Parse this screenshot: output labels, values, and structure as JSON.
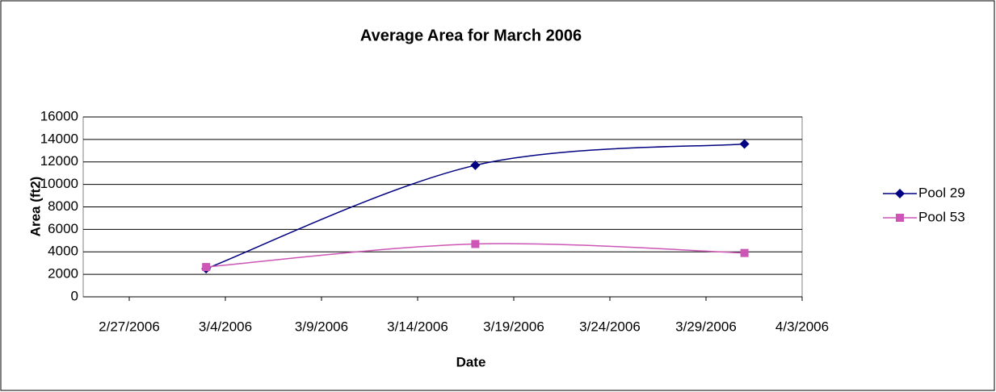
{
  "chart_data": {
    "type": "line",
    "title": "Average Area for March 2006",
    "x_label": "Date",
    "y_label": "Area (ft2)",
    "x": [
      "2006-03-03",
      "2006-03-17",
      "2006-03-31"
    ],
    "series": [
      {
        "name": "Pool 29",
        "color": "#000080",
        "marker": "diamond",
        "values": [
          2500,
          11700,
          13600
        ]
      },
      {
        "name": "Pool 53",
        "color": "#cc55b5",
        "marker": "square",
        "values": [
          2650,
          4700,
          3900
        ]
      }
    ],
    "xlim": [
      "2006-02-27",
      "2006-04-03"
    ],
    "xticks": [
      {
        "value": "2006-02-27",
        "label": "2/27/2006"
      },
      {
        "value": "2006-03-04",
        "label": "3/4/2006"
      },
      {
        "value": "2006-03-09",
        "label": "3/9/2006"
      },
      {
        "value": "2006-03-14",
        "label": "3/14/2006"
      },
      {
        "value": "2006-03-19",
        "label": "3/19/2006"
      },
      {
        "value": "2006-03-24",
        "label": "3/24/2006"
      },
      {
        "value": "2006-03-29",
        "label": "3/29/2006"
      },
      {
        "value": "2006-04-03",
        "label": "4/3/2006"
      }
    ],
    "ylim": [
      0,
      16000
    ],
    "yticks": [
      0,
      2000,
      4000,
      6000,
      8000,
      10000,
      12000,
      14000,
      16000
    ],
    "grid": true,
    "smooth": true,
    "legend": "right"
  }
}
